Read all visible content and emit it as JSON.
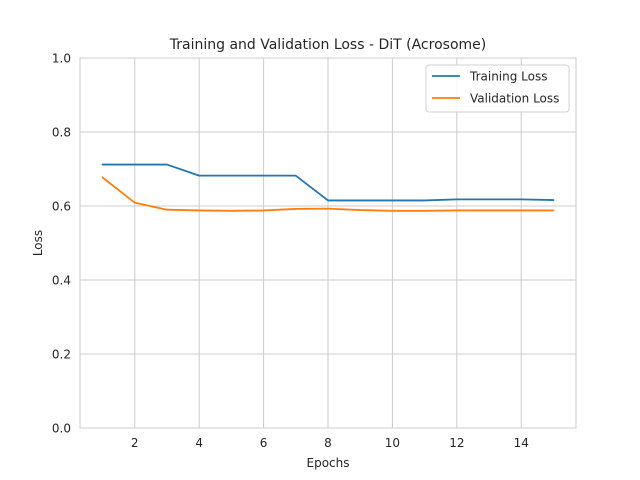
{
  "chart_data": {
    "type": "line",
    "title": "Training and Validation Loss - DiT (Acrosome)",
    "xlabel": "Epochs",
    "ylabel": "Loss",
    "xlim": [
      0.3,
      15.7
    ],
    "ylim": [
      0,
      1.0
    ],
    "xticks": [
      2,
      4,
      6,
      8,
      10,
      12,
      14
    ],
    "yticks": [
      0.0,
      0.2,
      0.4,
      0.6,
      0.8,
      1.0
    ],
    "grid": true,
    "legend_position": "top-right",
    "x": [
      1,
      2,
      3,
      4,
      5,
      6,
      7,
      8,
      9,
      10,
      11,
      12,
      13,
      14,
      15
    ],
    "series": [
      {
        "name": "Training Loss",
        "color": "#1f77b4",
        "values": [
          0.712,
          0.712,
          0.712,
          0.682,
          0.682,
          0.682,
          0.682,
          0.615,
          0.615,
          0.615,
          0.615,
          0.618,
          0.618,
          0.618,
          0.616
        ]
      },
      {
        "name": "Validation Loss",
        "color": "#ff7f0e",
        "values": [
          0.677,
          0.609,
          0.59,
          0.588,
          0.587,
          0.588,
          0.592,
          0.593,
          0.589,
          0.587,
          0.587,
          0.588,
          0.588,
          0.588,
          0.588
        ]
      }
    ]
  }
}
